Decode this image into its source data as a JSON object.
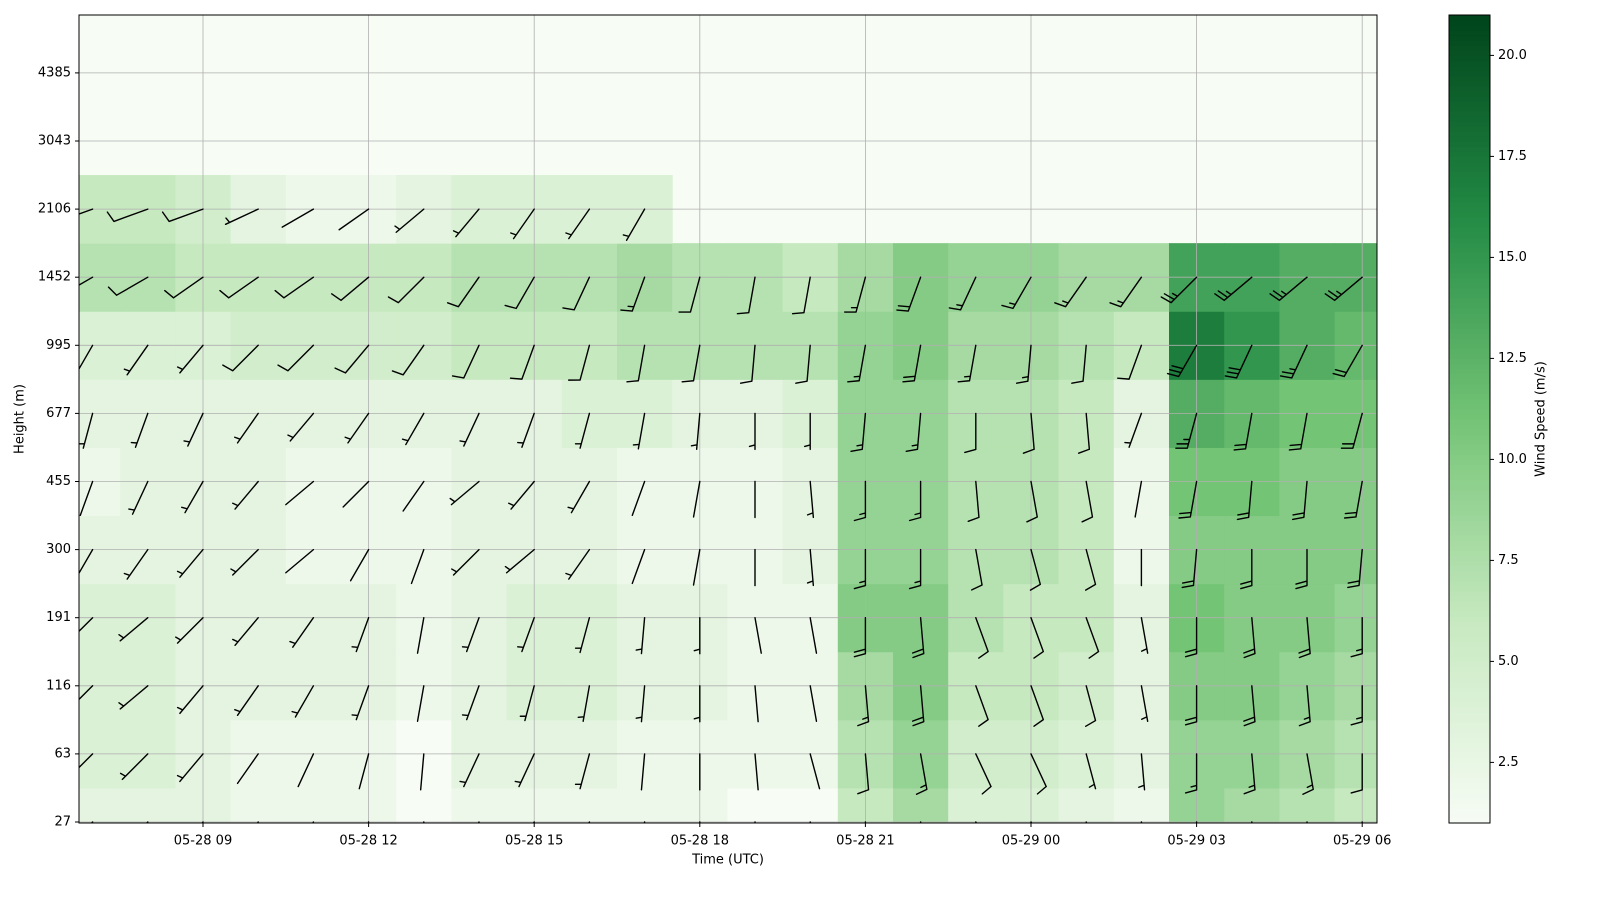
{
  "chart_data": {
    "type": "wind-barb-heatmap",
    "xlabel": "Time (UTC)",
    "ylabel": "Height (m)",
    "colorbar_label": "Wind Speed (m/s)",
    "x": [
      null,
      null,
      "05-28 09",
      null,
      null,
      "05-28 12",
      null,
      null,
      "05-28 15",
      null,
      null,
      "05-28 18",
      null,
      null,
      "05-28 21",
      null,
      null,
      "05-29 00",
      null,
      null,
      "05-29 03",
      null,
      null,
      "05-29 06"
    ],
    "yticks": [
      27,
      63,
      116,
      191,
      300,
      455,
      677,
      995,
      1452,
      2106,
      3043,
      4385
    ],
    "speed": [
      [
        3,
        3,
        3,
        2,
        2,
        2,
        1,
        2,
        2,
        2,
        2,
        2,
        1,
        1,
        6,
        8,
        4,
        4,
        3,
        2,
        9,
        8,
        7,
        6
      ],
      [
        4,
        4,
        3,
        2,
        2,
        2,
        1,
        3,
        3,
        3,
        2,
        2,
        2,
        2,
        7,
        9,
        5,
        5,
        4,
        3,
        9,
        9,
        8,
        7
      ],
      [
        4,
        4,
        3,
        3,
        3,
        3,
        2,
        3,
        4,
        4,
        3,
        3,
        2,
        2,
        8,
        10,
        6,
        6,
        5,
        3,
        10,
        10,
        9,
        8
      ],
      [
        4,
        4,
        3,
        3,
        3,
        3,
        2,
        3,
        4,
        4,
        3,
        3,
        2,
        2,
        10,
        10,
        7,
        6,
        6,
        3,
        11,
        10,
        10,
        9
      ],
      [
        3,
        3,
        3,
        3,
        2,
        2,
        2,
        3,
        3,
        3,
        2,
        2,
        2,
        3,
        9,
        9,
        7,
        7,
        6,
        2,
        10,
        10,
        10,
        10
      ],
      [
        2,
        3,
        3,
        3,
        2,
        2,
        2,
        3,
        3,
        3,
        2,
        2,
        2,
        3,
        9,
        9,
        7,
        7,
        6,
        2,
        11,
        11,
        10,
        10
      ],
      [
        3,
        3,
        3,
        3,
        3,
        3,
        3,
        3,
        3,
        4,
        4,
        3,
        3,
        4,
        9,
        9,
        7,
        7,
        6,
        3,
        13,
        12,
        11,
        11
      ],
      [
        4,
        4,
        4,
        5,
        5,
        5,
        5,
        6,
        6,
        6,
        7,
        7,
        7,
        7,
        9,
        10,
        8,
        8,
        7,
        6,
        17,
        15,
        13,
        12
      ],
      [
        7,
        7,
        6,
        6,
        6,
        6,
        6,
        7,
        7,
        7,
        8,
        7,
        7,
        6,
        8,
        10,
        9,
        9,
        8,
        8,
        14,
        14,
        13,
        13
      ],
      [
        6,
        6,
        5,
        3,
        2,
        2,
        3,
        4,
        4,
        4,
        4,
        null,
        null,
        null,
        null,
        null,
        null,
        null,
        null,
        null,
        null,
        null,
        null,
        null
      ]
    ],
    "direction": [
      [
        220,
        220,
        215,
        210,
        200,
        190,
        180,
        200,
        210,
        200,
        190,
        180,
        170,
        160,
        170,
        165,
        150,
        150,
        160,
        170,
        180,
        170,
        170,
        180
      ],
      [
        225,
        225,
        220,
        215,
        205,
        195,
        185,
        205,
        205,
        195,
        185,
        180,
        175,
        165,
        175,
        170,
        155,
        155,
        165,
        175,
        180,
        175,
        170,
        180
      ],
      [
        225,
        230,
        220,
        215,
        210,
        200,
        190,
        200,
        195,
        190,
        185,
        180,
        175,
        170,
        175,
        175,
        160,
        160,
        165,
        170,
        180,
        175,
        175,
        180
      ],
      [
        225,
        230,
        225,
        220,
        215,
        200,
        190,
        200,
        200,
        195,
        185,
        180,
        170,
        170,
        180,
        175,
        160,
        160,
        160,
        170,
        180,
        175,
        175,
        180
      ],
      [
        210,
        215,
        220,
        225,
        230,
        210,
        200,
        225,
        230,
        215,
        200,
        190,
        180,
        175,
        180,
        180,
        170,
        165,
        165,
        180,
        185,
        180,
        180,
        185
      ],
      [
        200,
        205,
        210,
        220,
        230,
        225,
        215,
        230,
        220,
        210,
        200,
        190,
        180,
        175,
        180,
        180,
        175,
        170,
        170,
        190,
        190,
        185,
        185,
        190
      ],
      [
        195,
        200,
        205,
        215,
        220,
        215,
        210,
        205,
        200,
        195,
        190,
        185,
        180,
        180,
        185,
        185,
        180,
        175,
        175,
        200,
        195,
        190,
        190,
        195
      ],
      [
        210,
        215,
        220,
        225,
        225,
        220,
        215,
        205,
        200,
        195,
        190,
        190,
        185,
        185,
        190,
        190,
        190,
        185,
        185,
        200,
        210,
        205,
        205,
        210
      ],
      [
        240,
        240,
        235,
        235,
        235,
        230,
        225,
        215,
        210,
        205,
        200,
        195,
        190,
        190,
        195,
        200,
        205,
        210,
        215,
        215,
        225,
        230,
        230,
        230
      ],
      [
        250,
        250,
        250,
        245,
        240,
        235,
        230,
        220,
        215,
        215,
        210,
        null,
        null,
        null,
        null,
        null,
        null,
        null,
        null,
        null,
        null,
        null,
        null,
        null
      ]
    ],
    "colormap": [
      "#f7fcf5",
      "#c7e9c0",
      "#74c476",
      "#238b45",
      "#00441b"
    ],
    "clim": [
      1,
      21
    ],
    "cticks": [
      {
        "value": 2.5,
        "label": "2.5"
      },
      {
        "value": 5,
        "label": "5.0"
      },
      {
        "value": 7.5,
        "label": "7.5"
      },
      {
        "value": 10,
        "label": "10.0"
      },
      {
        "value": 12.5,
        "label": "12.5"
      },
      {
        "value": 15,
        "label": "15.0"
      },
      {
        "value": 17.5,
        "label": "17.5"
      },
      {
        "value": 20,
        "label": "20.0"
      }
    ],
    "grid": true
  }
}
